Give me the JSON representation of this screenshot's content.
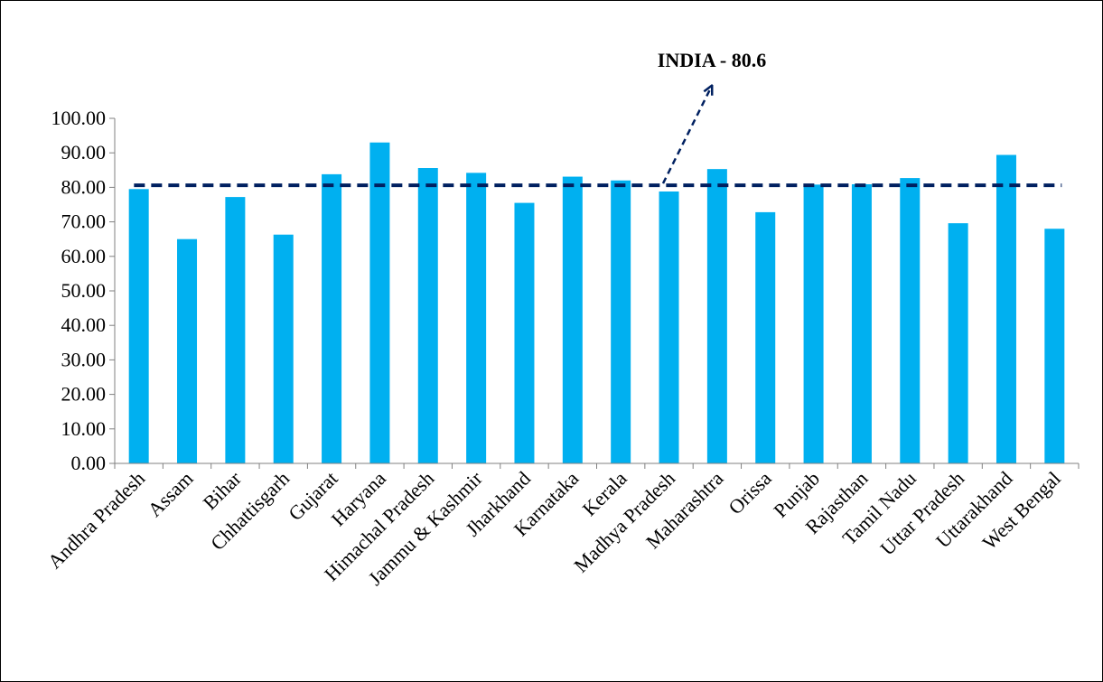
{
  "chart_data": {
    "type": "bar",
    "title": "",
    "xlabel": "",
    "ylabel": "",
    "ylim": [
      0,
      100
    ],
    "y_tick_step": 10,
    "y_tick_decimals": 2,
    "grid": false,
    "legend": "none",
    "bar_color": "#00B0F0",
    "categories": [
      "Andhra Pradesh",
      "Assam",
      "Bihar",
      "Chhattisgarh",
      "Gujarat",
      "Haryana",
      "Himachal Pradesh",
      "Jammu & Kashmir",
      "Jharkhand",
      "Karnataka",
      "Kerala",
      "Madhya Pradesh",
      "Maharashtra",
      "Orissa",
      "Punjab",
      "Rajasthan",
      "Tamil Nadu",
      "Uttar Pradesh",
      "Uttarakhand",
      "West Bengal"
    ],
    "values": [
      79.5,
      65.0,
      77.2,
      66.3,
      83.8,
      93.0,
      85.6,
      84.2,
      75.5,
      83.1,
      82.0,
      78.8,
      85.3,
      72.8,
      80.8,
      80.9,
      82.7,
      69.6,
      89.4,
      68.0
    ],
    "reference_line": {
      "value": 80.6,
      "label": "INDIA - 80.6",
      "color": "#002060",
      "style": "dashed"
    }
  }
}
